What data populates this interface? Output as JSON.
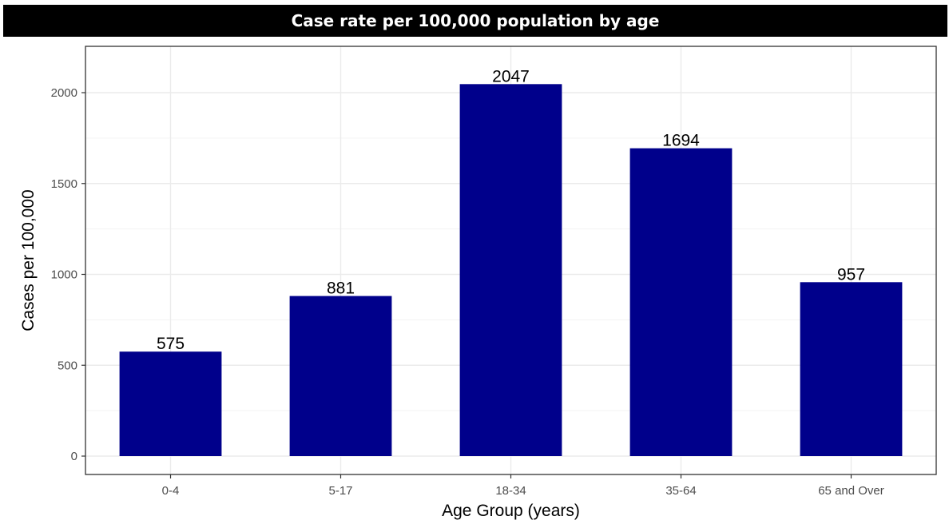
{
  "chart_data": {
    "type": "bar",
    "title": "Case rate per 100,000 population by age",
    "xlabel": "Age Group (years)",
    "ylabel": "Cases per 100,000",
    "categories": [
      "0-4",
      "5-17",
      "18-34",
      "35-64",
      "65 and Over"
    ],
    "values": [
      575,
      881,
      2047,
      1694,
      957
    ],
    "data_labels": [
      "575",
      "881",
      "2047",
      "1694",
      "957"
    ],
    "ylim": [
      0,
      2250
    ],
    "yticks": [
      0,
      500,
      1000,
      1500,
      2000
    ],
    "ytick_labels": [
      "0",
      "500",
      "1000",
      "1500",
      "2000"
    ],
    "grid": true,
    "legend": "none",
    "colors": {
      "bar": "#00008B",
      "title_bg": "#000000",
      "title_text": "#ffffff",
      "grid": "#ebebeb",
      "panel_border": "#333333"
    }
  }
}
